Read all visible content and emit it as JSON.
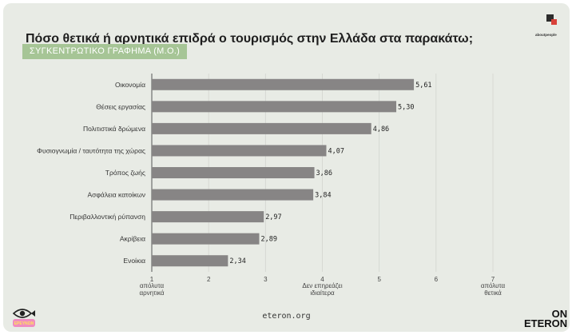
{
  "header": {
    "title": "Πόσο θετικά ή αρνητικά επιδρά ο τουρισμός στην Ελλάδα στα παρακάτω;",
    "subtitle": "ΣΥΓΚΕΝΤΡΩΤΙΚΟ ΓΡΑΦΗΜΑ (Μ.Ο.)",
    "brand_top_right": "aboutpeople"
  },
  "footer": {
    "source": "eteron.org",
    "brand_line1": "ON",
    "brand_line2": "ETERON",
    "logo_bottom_left_text": "ΕΡΕΥΝΩΝ"
  },
  "colors": {
    "bar": "#878585",
    "background": "#e8ebe5",
    "subtitle_bg": "#a6c596",
    "accent_red": "#d8423a"
  },
  "chart_data": {
    "type": "bar",
    "orientation": "horizontal",
    "categories": [
      "Οικονομία",
      "Θέσεις εργασίας",
      "Πολιτιστικά δρώμενα",
      "Φυσιογνωμία / ταυτότητα της χώρας",
      "Τρόπος ζωής",
      "Ασφάλεια κατοίκων",
      "Περιβαλλοντική ρύπανση",
      "Ακρίβεια",
      "Ενοίκια"
    ],
    "values": [
      5.61,
      5.3,
      4.86,
      4.07,
      3.86,
      3.84,
      2.97,
      2.89,
      2.34
    ],
    "value_labels": [
      "5,61",
      "5,30",
      "4,86",
      "4,07",
      "3,86",
      "3,84",
      "2,97",
      "2,89",
      "2,34"
    ],
    "xlim": [
      1,
      7
    ],
    "xticks": [
      1,
      2,
      3,
      4,
      5,
      6,
      7
    ],
    "tick_annotations": [
      {
        "tick": 1,
        "line1": "απόλυτα",
        "line2": "αρνητικά"
      },
      {
        "tick": 4,
        "line1": "Δεν επηρεάζει",
        "line2": "ιδιαίτερα"
      },
      {
        "tick": 7,
        "line1": "απόλυτα",
        "line2": "θετικά"
      }
    ],
    "grid": true
  }
}
